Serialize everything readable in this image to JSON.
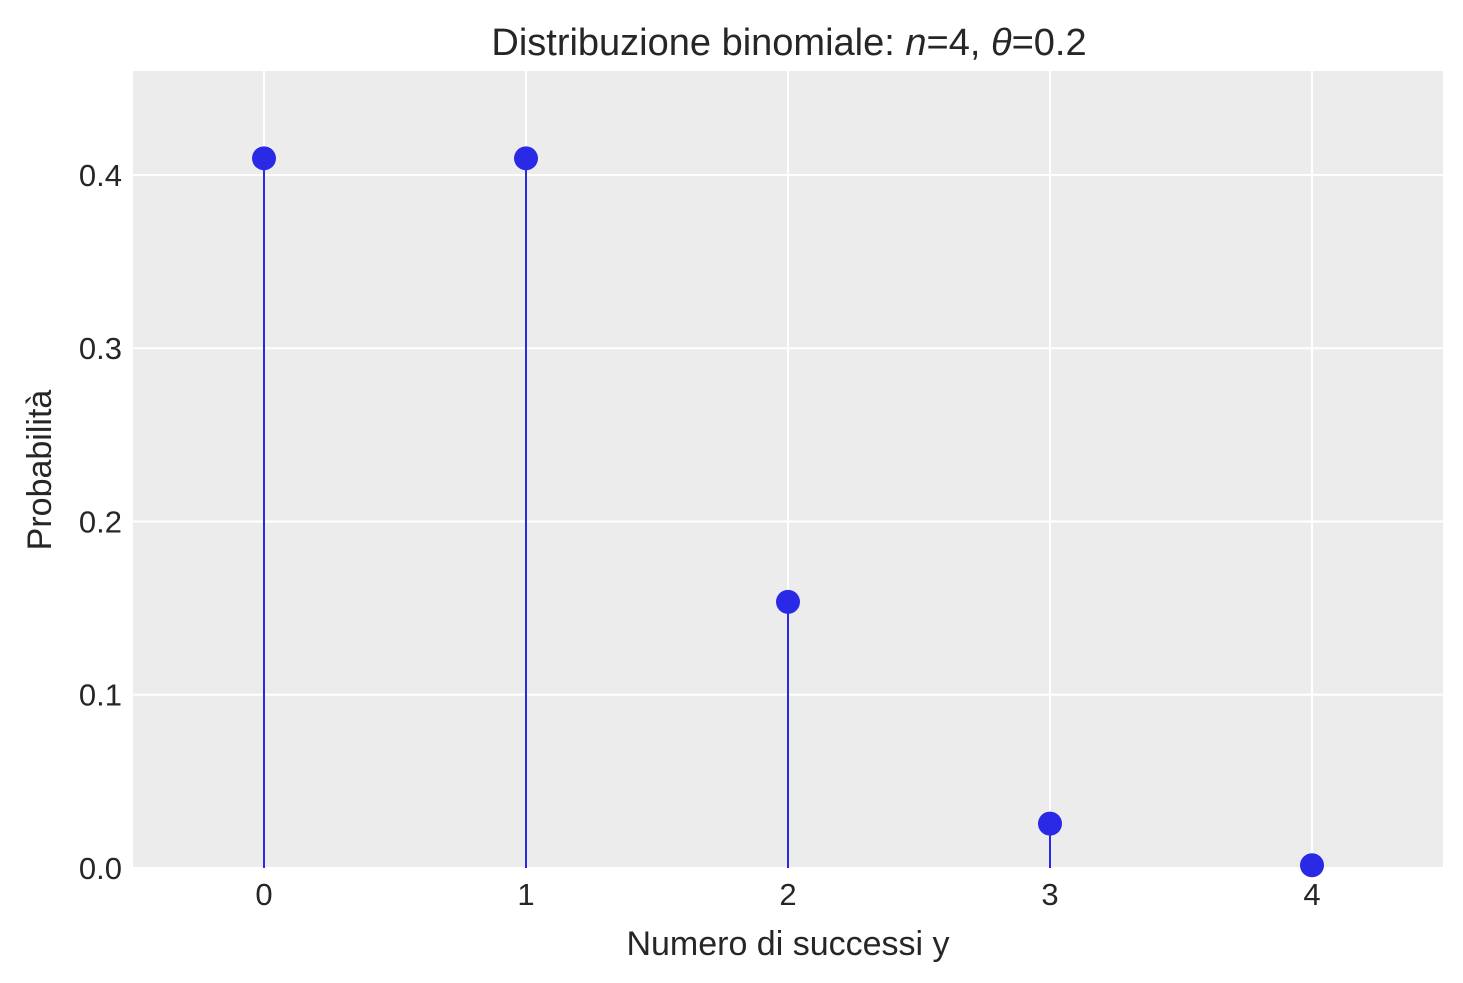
{
  "chart_data": {
    "type": "stem",
    "title": {
      "prefix": "Distribuzione binomiale: ",
      "n_symbol": "n",
      "n_value": "=4, ",
      "theta_symbol": "θ",
      "theta_value": "=0.2"
    },
    "xlabel": "Numero di successi y",
    "ylabel": "Probabilità",
    "x": [
      0,
      1,
      2,
      3,
      4
    ],
    "values": [
      0.4096,
      0.4096,
      0.1536,
      0.0256,
      0.0016
    ],
    "x_ticks": [
      "0",
      "1",
      "2",
      "3",
      "4"
    ],
    "y_ticks": [
      "0.0",
      "0.1",
      "0.2",
      "0.3",
      "0.4"
    ],
    "xlim": [
      -0.5,
      4.5
    ],
    "ylim": [
      0,
      0.46
    ],
    "grid": true,
    "background_color": "#ececec",
    "grid_color": "#ffffff",
    "series_color": "#2a2ae6"
  }
}
